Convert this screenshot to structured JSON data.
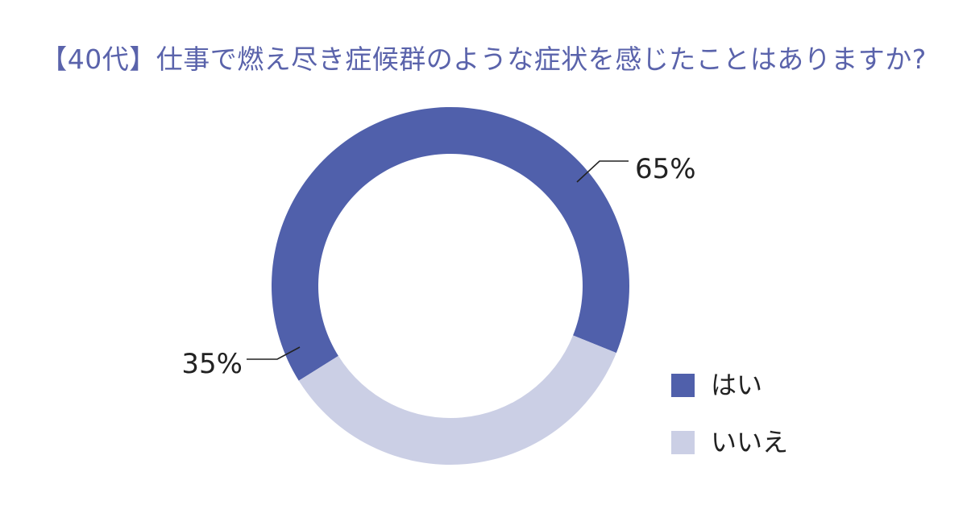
{
  "chart_data": {
    "type": "pie",
    "title": "【40代】仕事で燃え尽き症候群のような症状を感じたことはありますか?",
    "categories": [
      "はい",
      "いいえ"
    ],
    "values": [
      65,
      35
    ],
    "labels": [
      "65%",
      "35%"
    ],
    "colors": [
      "#5060ab",
      "#cbcfe5"
    ],
    "legend_position": "bottom-right"
  }
}
